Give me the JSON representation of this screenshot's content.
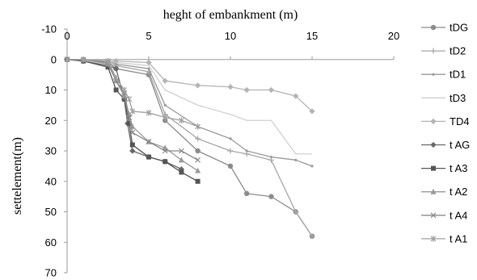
{
  "chart_data": {
    "type": "line",
    "title": "heght of embankment (m)",
    "xlabel": "",
    "ylabel": "settelement(m)",
    "xlim": [
      0,
      20
    ],
    "ylim": [
      -10,
      70
    ],
    "y_reversed": true,
    "x_axis_position": "top",
    "x_ticks": [
      "0",
      "5",
      "10",
      "15",
      "20"
    ],
    "y_ticks": [
      "-10",
      "0",
      "10",
      "20",
      "30",
      "40",
      "50",
      "60",
      "70"
    ],
    "grid": false,
    "legend_position": "right",
    "series": [
      {
        "name": "tDG",
        "color": "#8c8c8c",
        "marker": "circle",
        "x": [
          0,
          1,
          2.5,
          3,
          5,
          6,
          8,
          10,
          11,
          12.5,
          14,
          15
        ],
        "y": [
          0,
          0,
          1,
          3,
          5,
          20,
          30,
          35,
          44,
          45,
          50,
          58
        ]
      },
      {
        "name": "tD2",
        "color": "#a6a6a6",
        "marker": "plus",
        "x": [
          0,
          1,
          2.5,
          3,
          5,
          6,
          8,
          10,
          11,
          12.5,
          14,
          15
        ],
        "y": [
          0,
          0,
          1,
          2,
          4,
          18,
          26,
          30,
          31,
          33,
          50,
          58
        ]
      },
      {
        "name": "tD1",
        "color": "#999999",
        "marker": "dot",
        "x": [
          0,
          1,
          2.5,
          3,
          5,
          6,
          8,
          10,
          11,
          12.5,
          14,
          15
        ],
        "y": [
          0,
          0,
          0.5,
          1.5,
          3,
          15,
          22,
          26,
          30,
          32,
          33,
          35
        ]
      },
      {
        "name": "tD3",
        "color": "#d0d0d0",
        "marker": "none",
        "x": [
          0,
          1,
          2.5,
          3,
          5,
          6,
          8,
          10,
          11,
          12.5,
          14,
          15
        ],
        "y": [
          0,
          0,
          0.5,
          1,
          2,
          10,
          15,
          18,
          20,
          20,
          31,
          31
        ]
      },
      {
        "name": "TD4",
        "color": "#b3b3b3",
        "marker": "diamond",
        "x": [
          0,
          1,
          2.5,
          3,
          5,
          6,
          8,
          10,
          11,
          12.5,
          14,
          15
        ],
        "y": [
          0,
          0,
          0.5,
          0.5,
          1,
          7,
          8.5,
          9,
          10,
          10,
          12,
          17
        ]
      },
      {
        "name": "t AG",
        "color": "#666666",
        "marker": "diamond",
        "x": [
          0,
          1,
          2.5,
          3,
          3.5,
          3.7,
          4,
          5,
          6,
          7
        ],
        "y": [
          0,
          0.5,
          2,
          3,
          13,
          21,
          30,
          32,
          33.5,
          36
        ]
      },
      {
        "name": "t A3",
        "color": "#555555",
        "marker": "square",
        "x": [
          0,
          1,
          2.5,
          3,
          3.5,
          3.8,
          4,
          5,
          6,
          7,
          8
        ],
        "y": [
          0,
          0.5,
          2.5,
          10,
          13,
          21,
          28,
          32,
          33.5,
          37,
          40
        ]
      },
      {
        "name": "t A2",
        "color": "#999999",
        "marker": "triangle",
        "x": [
          0,
          1,
          2.5,
          3,
          3.5,
          3.8,
          4,
          5,
          6,
          7,
          8
        ],
        "y": [
          0,
          0,
          1.5,
          7,
          12,
          18,
          22,
          27,
          29,
          33,
          36.5
        ]
      },
      {
        "name": "t A4",
        "color": "#888888",
        "marker": "x",
        "x": [
          0,
          1,
          2.5,
          3,
          3.5,
          3.8,
          4,
          5,
          6,
          7,
          8
        ],
        "y": [
          0,
          0,
          1,
          7,
          11,
          19,
          24,
          27,
          30,
          30,
          33
        ]
      },
      {
        "name": "t A1",
        "color": "#a0a0a0",
        "marker": "asterisk",
        "x": [
          0,
          1,
          2.5,
          3,
          3.5,
          3.8,
          4,
          5,
          6,
          7,
          8
        ],
        "y": [
          0,
          0,
          0.5,
          6,
          10,
          13,
          17,
          17.5,
          19,
          20,
          22
        ]
      }
    ]
  }
}
